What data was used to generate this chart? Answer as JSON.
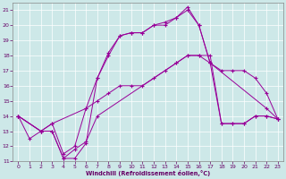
{
  "xlabel": "Windchill (Refroidissement éolien,°C)",
  "xlim": [
    -0.5,
    23.5
  ],
  "ylim": [
    11,
    21.5
  ],
  "yticks": [
    11,
    12,
    13,
    14,
    15,
    16,
    17,
    18,
    19,
    20,
    21
  ],
  "xticks": [
    0,
    1,
    2,
    3,
    4,
    5,
    6,
    7,
    8,
    9,
    10,
    11,
    12,
    13,
    14,
    15,
    16,
    17,
    18,
    19,
    20,
    21,
    22,
    23
  ],
  "bg_color": "#cde8e8",
  "line_color": "#990099",
  "line1_x": [
    0,
    1,
    2,
    3,
    4,
    5,
    6,
    7,
    14,
    15,
    16,
    17,
    18,
    19,
    20,
    21,
    22,
    23
  ],
  "line1_y": [
    14,
    12.5,
    13,
    13,
    11.2,
    11.8,
    12.3,
    14.0,
    17.5,
    18.0,
    18.0,
    18.0,
    13.5,
    13.5,
    13.5,
    14.0,
    14.0,
    13.8
  ],
  "line2_x": [
    0,
    2,
    3,
    4,
    5,
    6,
    7,
    8,
    9,
    10,
    11,
    12,
    13,
    14,
    15,
    16,
    17,
    18,
    19,
    20,
    21,
    22,
    23
  ],
  "line2_y": [
    14,
    13,
    13,
    11.2,
    11.2,
    12.2,
    16.5,
    18.2,
    19.3,
    19.5,
    19.5,
    20.0,
    20.0,
    20.5,
    21.2,
    20.0,
    17.5,
    13.5,
    13.5,
    13.5,
    14.0,
    14.0,
    13.8
  ],
  "line3_x": [
    0,
    2,
    3,
    4,
    5,
    6,
    7,
    8,
    9,
    10,
    11,
    12,
    13,
    14,
    15,
    16,
    17,
    22,
    23
  ],
  "line3_y": [
    14,
    13,
    13.5,
    11.5,
    12.0,
    14.5,
    16.5,
    18.0,
    19.3,
    19.5,
    19.5,
    20.0,
    20.2,
    20.5,
    21.0,
    20.0,
    17.5,
    14.5,
    13.8
  ],
  "line4_x": [
    0,
    2,
    3,
    6,
    7,
    8,
    9,
    10,
    11,
    12,
    13,
    14,
    15,
    16,
    17,
    18,
    19,
    20,
    21,
    22,
    23
  ],
  "line4_y": [
    14,
    13,
    13.5,
    14.5,
    15.0,
    15.5,
    16.0,
    16.0,
    16.0,
    16.5,
    17.0,
    17.5,
    18.0,
    18.0,
    17.5,
    17.0,
    17.0,
    17.0,
    16.5,
    15.5,
    13.8
  ]
}
